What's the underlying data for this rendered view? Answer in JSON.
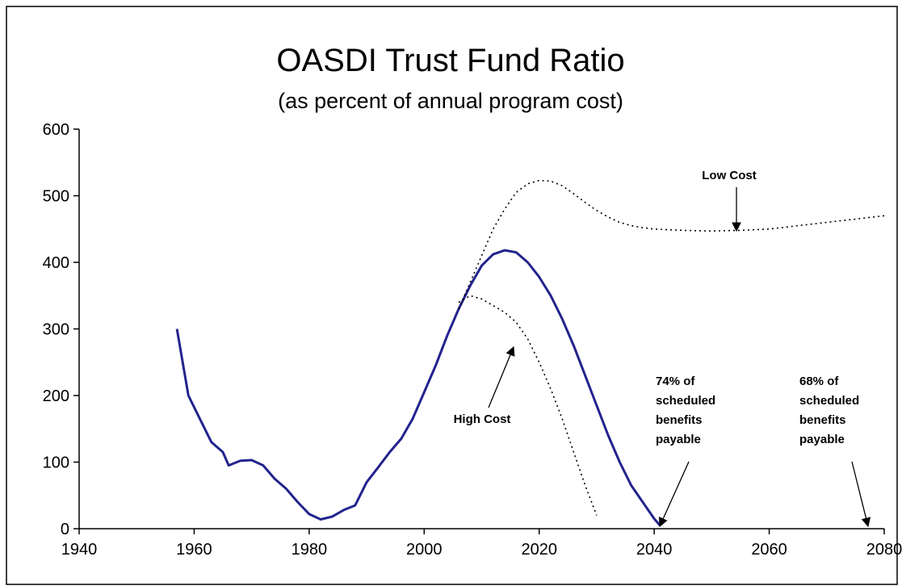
{
  "chart_data": {
    "type": "line",
    "title": "OASDI Trust Fund Ratio",
    "subtitle": "(as percent of annual program cost)",
    "xlim": [
      1940,
      2080
    ],
    "xticks": [
      1940,
      1960,
      1980,
      2000,
      2020,
      2040,
      2060,
      2080
    ],
    "ylim": [
      0,
      600
    ],
    "yticks": [
      0,
      100,
      200,
      300,
      400,
      500,
      600
    ],
    "grid": false,
    "series": [
      {
        "color": "#23238e",
        "dash": false,
        "x": [
          1957,
          1959,
          1961,
          1963,
          1965,
          1966,
          1968,
          1970,
          1972,
          1974,
          1976,
          1978,
          1980,
          1982,
          1984,
          1986,
          1988,
          1990,
          1992,
          1994,
          1996,
          1998,
          2000,
          2002,
          2004,
          2006,
          2008,
          2010,
          2012,
          2014,
          2016,
          2018,
          2020,
          2022,
          2024,
          2026,
          2028,
          2030,
          2032,
          2034,
          2036,
          2038,
          2040,
          2041
        ],
        "values": [
          300,
          200,
          165,
          130,
          115,
          95,
          102,
          103,
          95,
          75,
          60,
          40,
          22,
          14,
          18,
          28,
          35,
          70,
          92,
          115,
          135,
          165,
          205,
          245,
          290,
          330,
          365,
          395,
          412,
          418,
          415,
          400,
          378,
          350,
          315,
          275,
          230,
          185,
          140,
          100,
          65,
          40,
          15,
          5
        ]
      },
      {
        "name": "Low Cost",
        "color": "#000000",
        "dash": true,
        "x": [
          2006,
          2008,
          2010,
          2012,
          2014,
          2016,
          2018,
          2020,
          2022,
          2024,
          2026,
          2028,
          2030,
          2032,
          2034,
          2036,
          2038,
          2040,
          2045,
          2050,
          2055,
          2060,
          2065,
          2070,
          2075,
          2080
        ],
        "values": [
          330,
          370,
          410,
          450,
          480,
          505,
          518,
          523,
          522,
          515,
          503,
          490,
          478,
          468,
          460,
          455,
          452,
          450,
          448,
          447,
          448,
          450,
          455,
          460,
          465,
          470
        ]
      },
      {
        "name": "High Cost",
        "color": "#000000",
        "dash": true,
        "x": [
          2006,
          2008,
          2010,
          2012,
          2014,
          2016,
          2018,
          2020,
          2022,
          2024,
          2026,
          2028,
          2030
        ],
        "values": [
          340,
          350,
          345,
          335,
          325,
          310,
          285,
          250,
          210,
          165,
          115,
          65,
          20
        ]
      }
    ],
    "annotations": [
      {
        "lines": [
          "74% of",
          "scheduled",
          "benefits",
          "payable"
        ]
      },
      {
        "lines": [
          "68% of",
          "scheduled",
          "benefits",
          "payable"
        ]
      }
    ]
  }
}
